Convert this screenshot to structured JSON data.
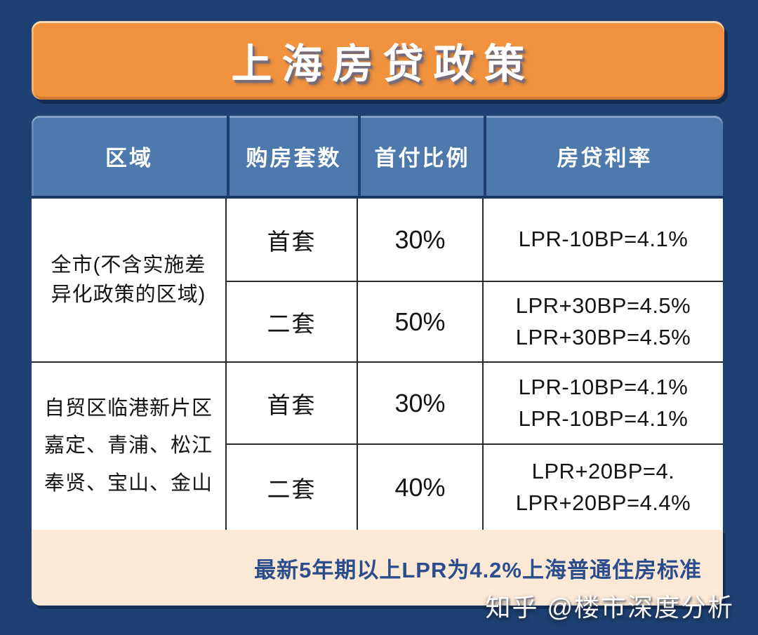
{
  "banner": {
    "title": "上海房贷政策",
    "bg_color": "#f1923e"
  },
  "colors": {
    "background": "#1e4073",
    "table_header_bg": "#4d79ad",
    "footer_bg": "#fbe8d5",
    "footer_text": "#2b4d8c",
    "grid_line": "#2a2a2a"
  },
  "table": {
    "columns": [
      "区域",
      "购房套数",
      "首付比例",
      "房贷利率"
    ],
    "sections": [
      {
        "region_lines": [
          "全市(不含实施差",
          "异化政策的区域)"
        ],
        "rows": [
          {
            "unit": "首套",
            "down_payment": "30%",
            "rate_lines": [
              "LPR-10BP=4.1%"
            ]
          },
          {
            "unit": "二套",
            "down_payment": "50%",
            "rate_lines": [
              "LPR+30BP=4.5%",
              "LPR+30BP=4.5%"
            ]
          }
        ]
      },
      {
        "region_lines": [
          "自贸区临港新片区",
          "嘉定、青浦、松江",
          "奉贤、宝山、金山"
        ],
        "rows": [
          {
            "unit": "首套",
            "down_payment": "30%",
            "rate_lines": [
              "LPR-10BP=4.1%",
              "LPR-10BP=4.1%"
            ]
          },
          {
            "unit": "二套",
            "down_payment": "40%",
            "rate_lines": [
              "LPR+20BP=4.",
              "LPR+20BP=4.4%"
            ]
          }
        ]
      }
    ]
  },
  "footer": {
    "note": "最新5年期以上LPR为4.2%上海普通住房标准"
  },
  "watermark": {
    "text": "知乎 @楼市深度分析"
  },
  "chart_data": {
    "type": "table",
    "title": "上海房贷政策",
    "columns": [
      "区域",
      "购房套数",
      "首付比例",
      "房贷利率"
    ],
    "rows": [
      [
        "全市(不含实施差异化政策的区域)",
        "首套",
        "30%",
        "LPR-10BP=4.1%"
      ],
      [
        "全市(不含实施差异化政策的区域)",
        "二套",
        "50%",
        "LPR+30BP=4.5%  LPR+30BP=4.5%"
      ],
      [
        "自贸区临港新片区嘉定、青浦、松江奉贤、宝山、金山",
        "首套",
        "30%",
        "LPR-10BP=4.1%  LPR-10BP=4.1%"
      ],
      [
        "自贸区临港新片区嘉定、青浦、松江奉贤、宝山、金山",
        "二套",
        "40%",
        "LPR+20BP=4.  LPR+20BP=4.4%"
      ]
    ],
    "footnote": "最新5年期以上LPR为4.2%上海普通住房标准"
  }
}
